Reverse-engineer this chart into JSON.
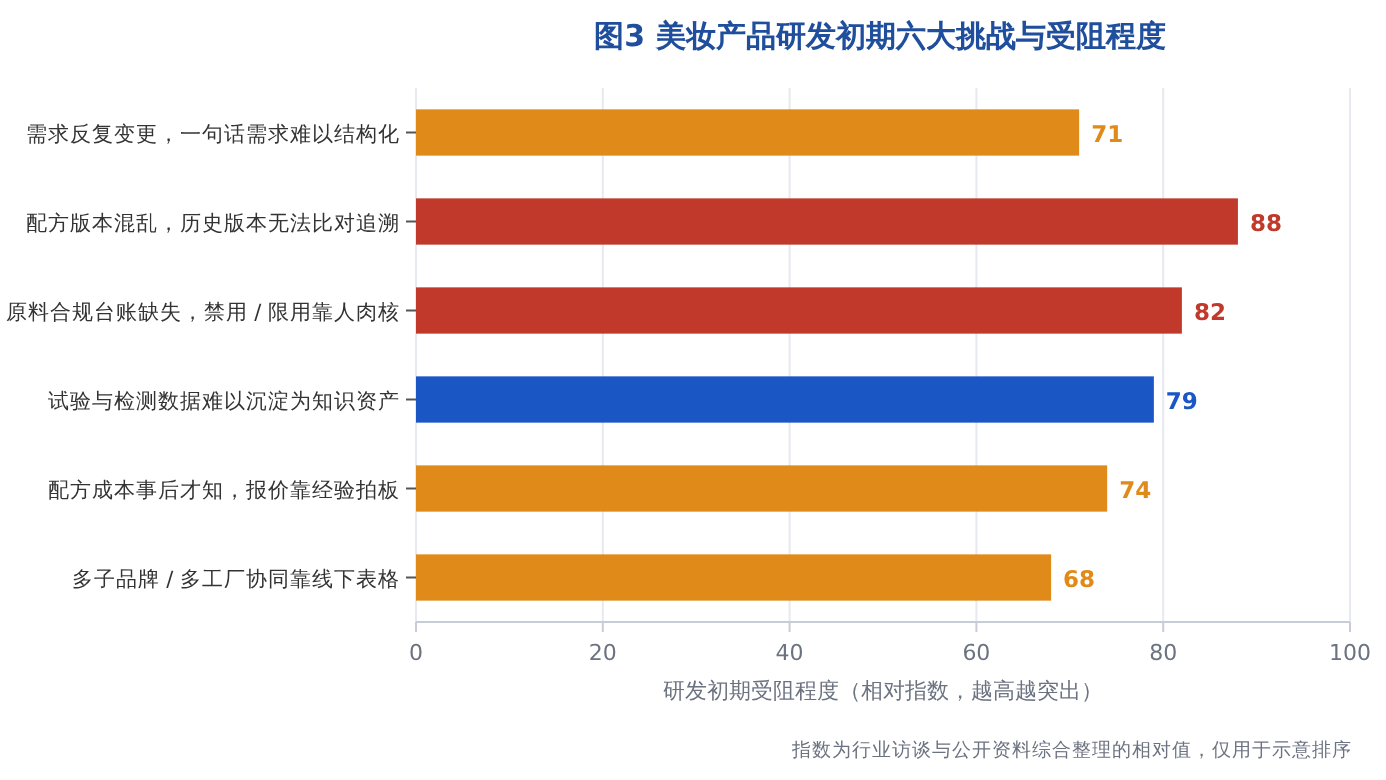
{
  "chart_data": {
    "type": "bar",
    "orientation": "horizontal",
    "title": "图3  美妆产品研发初期六大挑战与受阻程度",
    "xlabel": "研发初期受阻程度（相对指数，越高越突出）",
    "categories": [
      "需求反复变更，一句话需求难以结构化",
      "配方版本混乱，历史版本无法比对追溯",
      "原料合规台账缺失，禁用 / 限用靠人肉核",
      "试验与检测数据难以沉淀为知识资产",
      "配方成本事后才知，报价靠经验拍板",
      "多子品牌 / 多工厂协同靠线下表格"
    ],
    "values": [
      71,
      88,
      82,
      79,
      74,
      68
    ],
    "colors": [
      "#e08a1a",
      "#c0392b",
      "#c0392b",
      "#1a56c4",
      "#e08a1a",
      "#e08a1a"
    ],
    "xlim": [
      0,
      100
    ],
    "xticks": [
      0,
      20,
      40,
      60,
      80,
      100
    ],
    "grid": "x",
    "data_labels": true,
    "annotations": [
      "指数为行业访谈与公开资料综合整理的相对值，仅用于示意排序"
    ]
  }
}
